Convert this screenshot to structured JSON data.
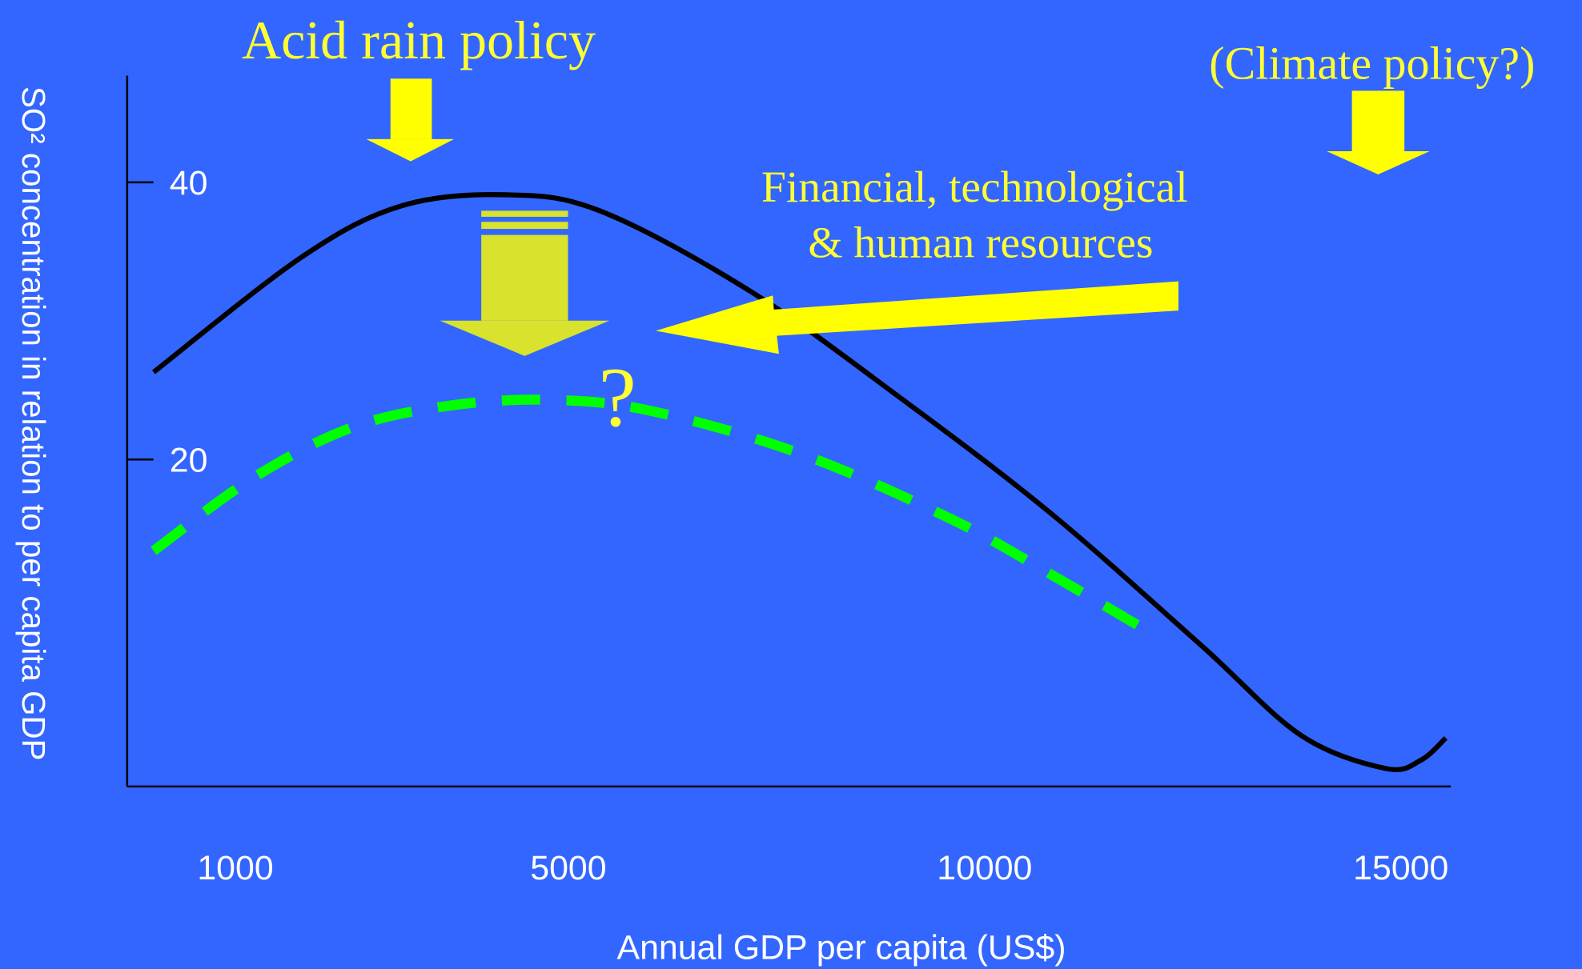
{
  "chart_data": {
    "type": "line",
    "x_label": "Annual GDP per capita (US$)",
    "y_label": "SO² concentration in relation to per capita GDP",
    "annotations": [
      "Acid rain policy",
      "(Climate policy?)",
      "Financial, technological",
      "& human resources",
      "?"
    ],
    "xlim": [
      -300,
      15600
    ],
    "xticks": [
      1000,
      5000,
      10000,
      15000
    ],
    "ylim": [
      -3.6,
      47.7
    ],
    "yticks": [
      20,
      40
    ],
    "series": [
      {
        "color": "#000000",
        "dashed": false,
        "x": [
          18,
          1795,
          2995,
          4255,
          5396,
          7197,
          8998,
          10798,
          12599,
          13799,
          14820,
          15240,
          15540
        ],
        "values": [
          26.3,
          34.6,
          38.3,
          39.1,
          37.9,
          32.1,
          24.4,
          16.1,
          6.6,
          0.1,
          -2.3,
          -1.7,
          -0.1
        ]
      },
      {
        "color": "#00ff00",
        "dashed": true,
        "x": [
          18,
          1195,
          2395,
          3595,
          4795,
          5996,
          7797,
          9598,
          10798,
          11879
        ],
        "values": [
          13.4,
          18.6,
          22.3,
          23.9,
          24.3,
          23.5,
          20.4,
          15.7,
          11.7,
          7.9
        ]
      }
    ]
  }
}
